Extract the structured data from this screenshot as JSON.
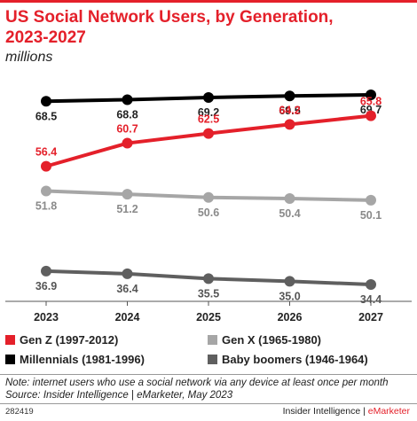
{
  "header": {
    "title_line1": "US Social Network Users, by Generation,",
    "title_line2": "2023-2027",
    "subtitle": "millions"
  },
  "chart_data": {
    "type": "line",
    "title": "US Social Network Users, by Generation, 2023-2027",
    "subtitle": "millions",
    "xlabel": "",
    "ylabel": "",
    "x": [
      "2023",
      "2024",
      "2025",
      "2026",
      "2027"
    ],
    "ylim": [
      30,
      72
    ],
    "grid": false,
    "legend_placement": "bottom",
    "series": [
      {
        "name": "Millennials (1981-1996)",
        "color": "#000000",
        "values": [
          68.5,
          68.8,
          69.2,
          69.5,
          69.7
        ],
        "labels": [
          "68.5",
          "68.8",
          "69.2",
          "69.5",
          "69.7"
        ]
      },
      {
        "name": "Gen Z (1997-2012)",
        "color": "#e4202a",
        "values": [
          56.4,
          60.7,
          62.5,
          64.2,
          65.8
        ],
        "labels": [
          "56.4",
          "60.7",
          "62.5",
          "64.2",
          "65.8"
        ]
      },
      {
        "name": "Gen X (1965-1980)",
        "color": "#a6a6a6",
        "values": [
          51.8,
          51.2,
          50.6,
          50.4,
          50.1
        ],
        "labels": [
          "51.8",
          "51.2",
          "50.6",
          "50.4",
          "50.1"
        ]
      },
      {
        "name": "Baby boomers (1946-1964)",
        "color": "#5f5f5f",
        "values": [
          36.9,
          36.4,
          35.5,
          35.0,
          34.4
        ],
        "labels": [
          "36.9",
          "36.4",
          "35.5",
          "35.0",
          "34.4"
        ]
      }
    ]
  },
  "legend": [
    {
      "label": "Gen Z (1997-2012)",
      "color": "#e4202a"
    },
    {
      "label": "Gen X (1965-1980)",
      "color": "#a6a6a6"
    },
    {
      "label": "Millennials (1981-1996)",
      "color": "#000000"
    },
    {
      "label": "Baby boomers (1946-1964)",
      "color": "#5f5f5f"
    }
  ],
  "footer": {
    "note_line1": "Note: internet users who use a social network via any device at least once per month",
    "note_line2": "Source: Insider Intelligence | eMarketer, May 2023",
    "id": "282419",
    "brand_left": "Insider Intelligence | ",
    "brand_right": "eMarketer"
  }
}
